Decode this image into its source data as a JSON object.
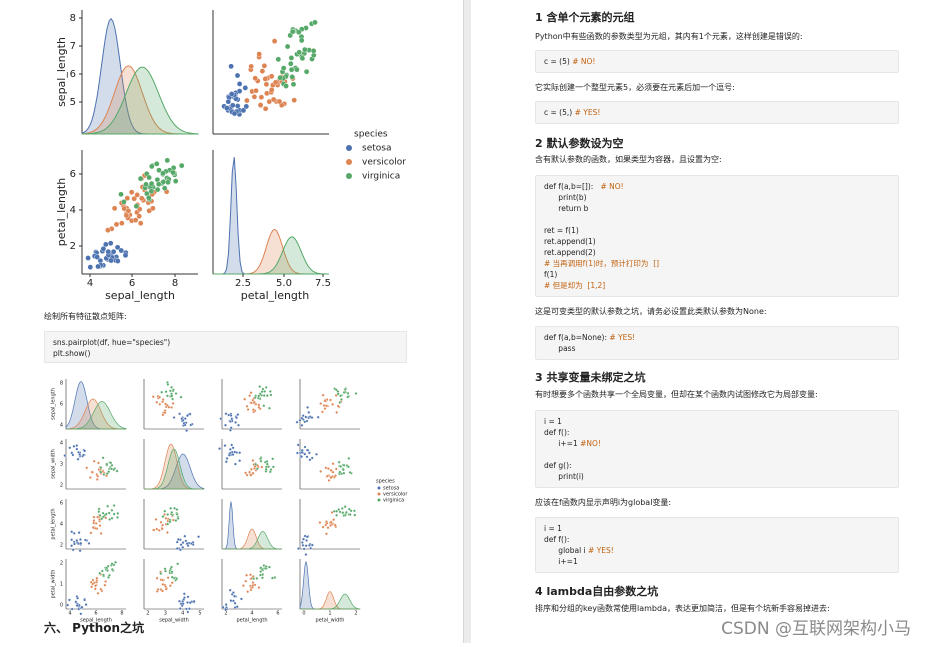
{
  "left_page": {
    "figure1": {
      "y_labels": [
        "sepal_length",
        "petal_length"
      ],
      "x_labels": [
        "sepal_length",
        "petal_length"
      ],
      "y_ticks": [
        [
          "8",
          "7",
          "6",
          "5"
        ],
        [
          "6",
          "4",
          "2"
        ]
      ],
      "x_ticks": [
        [
          "4",
          "6",
          "8"
        ],
        [
          "2.5",
          "5.0",
          "7.5"
        ]
      ],
      "legend": {
        "title": "species",
        "items": [
          "setosa",
          "versicolor",
          "virginica"
        ]
      }
    },
    "caption": "绘制所有特征散点矩阵:",
    "code": [
      "sns.pairplot(df, hue=\"species\")",
      "plt.show()"
    ],
    "figure2": {
      "labels": [
        "sepal_length",
        "sepal_width",
        "petal_length",
        "petal_width"
      ],
      "y_ticks": [
        [
          "8",
          "6",
          "4"
        ],
        [
          "4",
          "3",
          "2"
        ],
        [
          "6",
          "4",
          "2"
        ],
        [
          "2",
          "1",
          "0"
        ]
      ],
      "x_ticks": [
        [
          "4",
          "6",
          "8"
        ],
        [
          "2",
          "3",
          "4",
          "5"
        ],
        [
          "2",
          "4",
          "6"
        ],
        [
          "0",
          "1",
          "2"
        ]
      ],
      "legend": {
        "title": "species",
        "items": [
          "setosa",
          "versicolor",
          "virginica"
        ]
      }
    },
    "section": "六、 Python之坑"
  },
  "right_page": {
    "blocks": [
      {
        "heading": "1 含单个元素的元组"
      },
      {
        "text": "Python中有些函数的参数类型为元组，其内有1个元素，这样创建是错误的:"
      },
      {
        "code": [
          [
            {
              "code": "c = (5) ",
              "comment": "# NO!"
            }
          ]
        ]
      },
      {
        "text": "它实际创建一个整型元素5，必须要在元素后加一个逗号:"
      },
      {
        "code": [
          [
            {
              "code": "c = (5,) ",
              "comment": "# YES!"
            }
          ]
        ]
      },
      {
        "heading": "2 默认参数设为空"
      },
      {
        "text": "含有默认参数的函数，如果类型为容器，且设置为空:"
      },
      {
        "code": [
          [
            {
              "code": "def f(a,b=[]):   ",
              "comment": "# NO!"
            },
            {
              "code": "      print(b)"
            },
            {
              "code": "      return b"
            }
          ],
          [
            {
              "code": "ret = f(1)"
            },
            {
              "code": "ret.append(1)"
            },
            {
              "code": "ret.append(2)"
            },
            {
              "comment": "# 当再调用f(1)时，预计打印为  []"
            },
            {
              "code": "f(1)"
            },
            {
              "comment": "# 但是却为  [1,2]"
            }
          ]
        ]
      },
      {
        "text": "这是可变类型的默认参数之坑，请务必设置此类默认参数为None:"
      },
      {
        "code": [
          [
            {
              "code": "def f(a,b=None): ",
              "comment": "# YES!"
            },
            {
              "code": "      pass"
            }
          ]
        ]
      },
      {
        "heading": "3 共享变量未绑定之坑"
      },
      {
        "text": "有时想要多个函数共享一个全局变量，但却在某个函数内试图修改它为局部变量:"
      },
      {
        "code": [
          [
            {
              "code": "i = 1"
            },
            {
              "code": "def f():"
            },
            {
              "code": "      i+=1 ",
              "comment": "#NO!"
            }
          ],
          [
            {
              "code": "def g():"
            },
            {
              "code": "      print(i)"
            }
          ]
        ]
      },
      {
        "text": "应该在f函数内显示声明i为global变量:"
      },
      {
        "code": [
          [
            {
              "code": "i = 1"
            },
            {
              "code": "def f():"
            },
            {
              "code": "      global i ",
              "comment": "# YES!"
            },
            {
              "code": "      i+=1"
            }
          ]
        ]
      },
      {
        "heading": "4 lambda自由参数之坑"
      },
      {
        "text": "排序和分组的key函数常使用lambda，表达更加简洁，但是有个坑新手容易掉进去:"
      }
    ]
  },
  "watermark": "CSDN @互联网架构小马"
}
